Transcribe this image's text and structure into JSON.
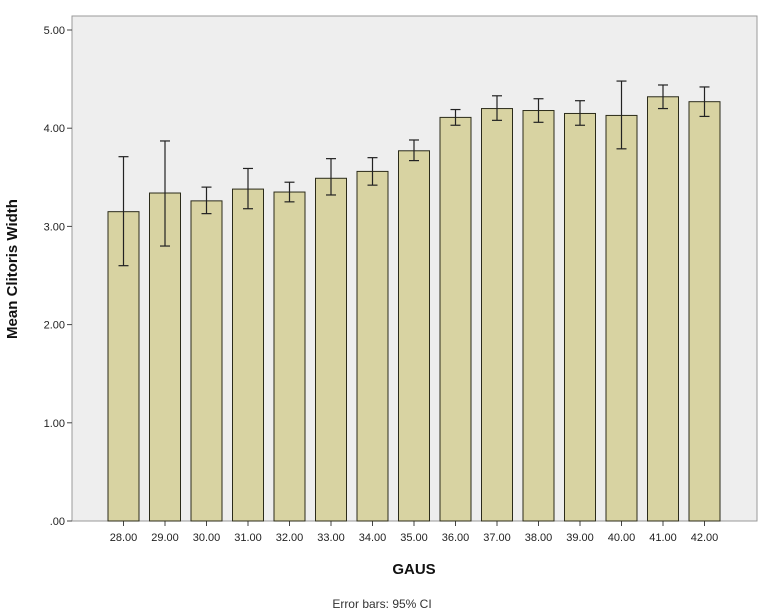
{
  "chart_data": {
    "type": "bar",
    "categories": [
      "28.00",
      "29.00",
      "30.00",
      "31.00",
      "32.00",
      "33.00",
      "34.00",
      "35.00",
      "36.00",
      "37.00",
      "38.00",
      "39.00",
      "40.00",
      "41.00",
      "42.00"
    ],
    "series": [
      {
        "values": [
          3.15,
          3.34,
          3.26,
          3.38,
          3.35,
          3.49,
          3.56,
          3.77,
          4.11,
          4.2,
          4.18,
          4.15,
          4.13,
          4.32,
          4.27
        ],
        "error_low": [
          2.6,
          2.8,
          3.13,
          3.18,
          3.25,
          3.32,
          3.42,
          3.67,
          4.03,
          4.08,
          4.06,
          4.03,
          3.79,
          4.2,
          4.12
        ],
        "error_high": [
          3.71,
          3.87,
          3.4,
          3.59,
          3.45,
          3.69,
          3.7,
          3.88,
          4.19,
          4.33,
          4.3,
          4.28,
          4.48,
          4.44,
          4.42
        ]
      }
    ],
    "title": "",
    "xlabel": "GAUS",
    "ylabel": "Mean Clitoris Width",
    "ylim": [
      0,
      5
    ],
    "yticks": [
      ".00",
      "1.00",
      "2.00",
      "3.00",
      "4.00",
      "5.00"
    ],
    "grid": false,
    "footnote": "Error bars: 95% CI",
    "colors": {
      "bar_fill": "#d8d3a2",
      "bar_stroke": "#2b2b1a",
      "plot_background": "#eeeeee",
      "error_bar": "#222222"
    }
  }
}
